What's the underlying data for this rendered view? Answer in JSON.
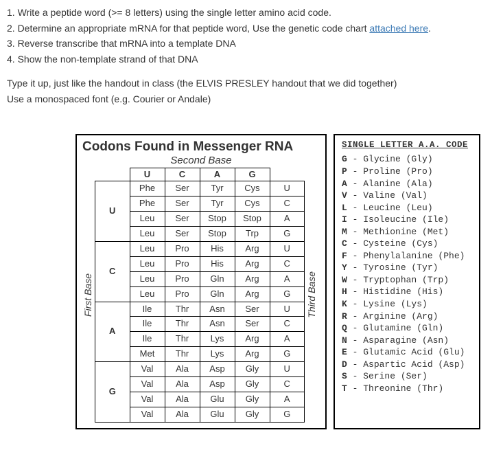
{
  "instructions": {
    "line1": "1. Write a peptide word (>= 8 letters) using the single letter amino acid code.",
    "line2_a": "2. Determine an appropriate mRNA for that peptide word, Use the genetic code chart ",
    "line2_link": "attached here",
    "line2_b": ".",
    "line3": "3. Reverse transcribe that mRNA into a template DNA",
    "line4": "4. Show the non-template strand of that DNA",
    "line5": "Type it up, just like the handout in class (the ELVIS PRESLEY handout that we did together)",
    "line6": "Use a monospaced font (e.g. Courier or Andale)"
  },
  "codon": {
    "title": "Codons Found in Messenger RNA",
    "subtitle": "Second Base",
    "first_base_label": "First Base",
    "third_base_label": "Third Base",
    "col_heads": [
      "U",
      "C",
      "A",
      "G"
    ],
    "row_heads": [
      "U",
      "C",
      "A",
      "G"
    ],
    "third_col": [
      "U",
      "C",
      "A",
      "G"
    ],
    "rows": [
      [
        [
          "Phe",
          "Phe",
          "Leu",
          "Leu"
        ],
        [
          "Ser",
          "Ser",
          "Ser",
          "Ser"
        ],
        [
          "Tyr",
          "Tyr",
          "Stop",
          "Stop"
        ],
        [
          "Cys",
          "Cys",
          "Stop",
          "Trp"
        ]
      ],
      [
        [
          "Leu",
          "Leu",
          "Leu",
          "Leu"
        ],
        [
          "Pro",
          "Pro",
          "Pro",
          "Pro"
        ],
        [
          "His",
          "His",
          "Gln",
          "Gln"
        ],
        [
          "Arg",
          "Arg",
          "Arg",
          "Arg"
        ]
      ],
      [
        [
          "Ile",
          "Ile",
          "Ile",
          "Met"
        ],
        [
          "Thr",
          "Thr",
          "Thr",
          "Thr"
        ],
        [
          "Asn",
          "Asn",
          "Lys",
          "Lys"
        ],
        [
          "Ser",
          "Ser",
          "Arg",
          "Arg"
        ]
      ],
      [
        [
          "Val",
          "Val",
          "Val",
          "Val"
        ],
        [
          "Ala",
          "Ala",
          "Ala",
          "Ala"
        ],
        [
          "Asp",
          "Asp",
          "Glu",
          "Glu"
        ],
        [
          "Gly",
          "Gly",
          "Gly",
          "Gly"
        ]
      ]
    ]
  },
  "code": {
    "title": "SINGLE LETTER A.A. CODE",
    "entries": [
      {
        "l": "G",
        "n": "Glycine",
        "a": "Gly"
      },
      {
        "l": "P",
        "n": "Proline",
        "a": "Pro"
      },
      {
        "l": "A",
        "n": "Alanine",
        "a": "Ala"
      },
      {
        "l": "V",
        "n": "Valine",
        "a": "Val"
      },
      {
        "l": "L",
        "n": "Leucine",
        "a": "Leu"
      },
      {
        "l": "I",
        "n": "Isoleucine",
        "a": "Ile"
      },
      {
        "l": "M",
        "n": "Methionine",
        "a": "Met"
      },
      {
        "l": "C",
        "n": "Cysteine",
        "a": "Cys"
      },
      {
        "l": "F",
        "n": "Phenylalanine",
        "a": "Phe"
      },
      {
        "l": "Y",
        "n": "Tyrosine",
        "a": "Tyr"
      },
      {
        "l": "W",
        "n": "Tryptophan",
        "a": "Trp"
      },
      {
        "l": "H",
        "n": "Histidine",
        "a": "His"
      },
      {
        "l": "K",
        "n": "Lysine",
        "a": "Lys"
      },
      {
        "l": "R",
        "n": "Arginine",
        "a": "Arg"
      },
      {
        "l": "Q",
        "n": "Glutamine",
        "a": "Gln"
      },
      {
        "l": "N",
        "n": "Asparagine",
        "a": "Asn"
      },
      {
        "l": "E",
        "n": "Glutamic Acid",
        "a": "Glu"
      },
      {
        "l": "D",
        "n": "Aspartic Acid",
        "a": "Asp"
      },
      {
        "l": "S",
        "n": "Serine",
        "a": "Ser"
      },
      {
        "l": "T",
        "n": "Threonine",
        "a": "Thr"
      }
    ]
  }
}
